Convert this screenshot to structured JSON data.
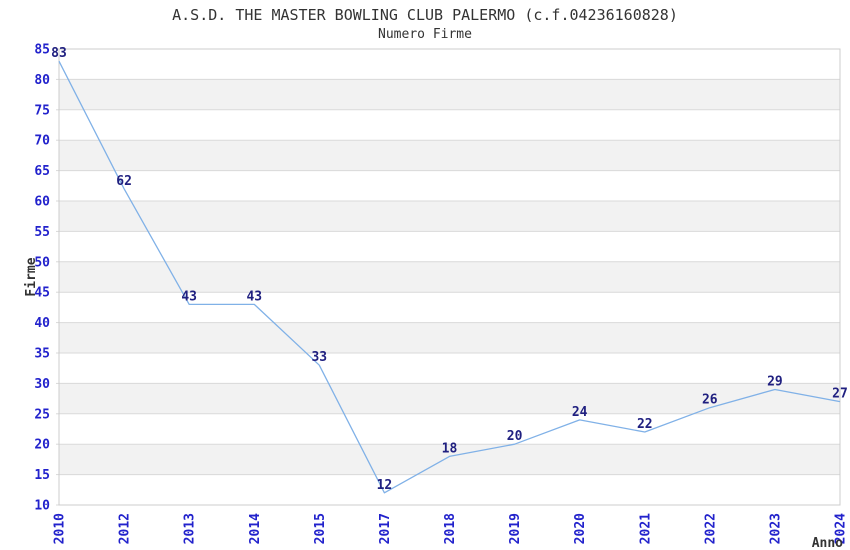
{
  "header": {
    "title": "A.S.D. THE MASTER BOWLING CLUB PALERMO (c.f.04236160828)",
    "subtitle": "Numero Firme"
  },
  "chart_data": {
    "type": "line",
    "title": "A.S.D. THE MASTER BOWLING CLUB PALERMO (c.f.04236160828)",
    "subtitle": "Numero Firme",
    "xlabel": "Anno",
    "ylabel": "Firme",
    "categories": [
      "2010",
      "2012",
      "2013",
      "2014",
      "2015",
      "2017",
      "2018",
      "2019",
      "2020",
      "2021",
      "2022",
      "2023",
      "2024"
    ],
    "series": [
      {
        "name": "Numero Firme",
        "values": [
          83,
          62,
          43,
          43,
          33,
          12,
          18,
          20,
          24,
          22,
          26,
          29,
          27
        ]
      }
    ],
    "ylim": [
      10,
      85
    ],
    "ytick_step": 5,
    "grid": "horizontal",
    "alternating_bands": true,
    "data_labels": true,
    "legend": "none",
    "markers": "none"
  },
  "colors": {
    "background": "#ffffff",
    "line": "#80b1e7",
    "data_label": "#202080",
    "tick_label": "#2222cc",
    "title_text": "#333333",
    "axis_title_text": "#333333",
    "band": "#f2f2f2",
    "gridline": "#d9d9d9",
    "border": "#cccccc"
  }
}
